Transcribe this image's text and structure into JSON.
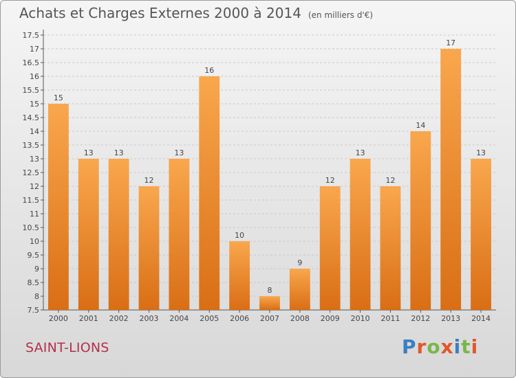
{
  "header": {
    "title": "Achats et Charges Externes 2000 à 2014",
    "subtitle": "(en milliers d'€)"
  },
  "footer": {
    "commune": "SAINT-LIONS",
    "logo": "Proxiti"
  },
  "colors": {
    "bar_light": "#f9a74d",
    "bar_dark": "#d96e15",
    "title": "#555555",
    "commune": "#b2314a",
    "logo_letters": [
      "#3a7fc3",
      "#e2572b",
      "#7ab648",
      "#e2572b",
      "#3a7fc3",
      "#7ab648",
      "#e2572b"
    ]
  },
  "chart_data": {
    "type": "bar",
    "categories": [
      "2000",
      "2001",
      "2002",
      "2003",
      "2004",
      "2005",
      "2006",
      "2007",
      "2008",
      "2009",
      "2010",
      "2011",
      "2012",
      "2013",
      "2014"
    ],
    "values": [
      15,
      13,
      13,
      12,
      13,
      16,
      10,
      8,
      9,
      12,
      13,
      12,
      14,
      17,
      13
    ],
    "ylim": [
      7.5,
      17.5
    ],
    "yticks": [
      "7.5",
      "8",
      "8.5",
      "9",
      "9.5",
      "10",
      "10.5",
      "11",
      "11.5",
      "12",
      "12.5",
      "13",
      "13.5",
      "14",
      "14.5",
      "15",
      "15.5",
      "16",
      "16.5",
      "17",
      "17.5"
    ],
    "grid": true
  }
}
